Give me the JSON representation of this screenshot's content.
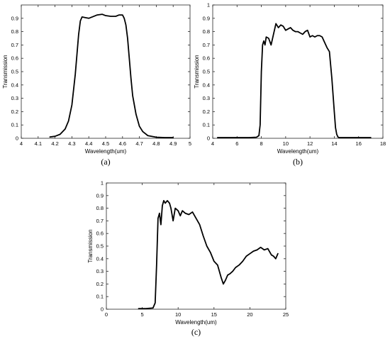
{
  "chart_data": [
    {
      "id": "a",
      "type": "line",
      "caption": "(a)",
      "title": "",
      "xlabel": "Wavelength(um)",
      "ylabel": "Transmission",
      "xlim": [
        4,
        5
      ],
      "ylim": [
        0,
        1
      ],
      "xticks": [
        4,
        4.1,
        4.2,
        4.3,
        4.4,
        4.5,
        4.6,
        4.7,
        4.8,
        4.9,
        5
      ],
      "xtick_labels": [
        "4",
        "4.1",
        "4.2",
        "4.3",
        "4.4",
        "4.5",
        "4.6",
        "4.7",
        "4.8",
        "4.9",
        "5"
      ],
      "yticks": [
        0,
        0.1,
        0.2,
        0.3,
        0.4,
        0.5,
        0.6,
        0.7,
        0.8,
        0.9
      ],
      "ytick_labels": [
        "0",
        "0.1",
        "0.2",
        "0.3",
        "0.4",
        "0.5",
        "0.6",
        "0.7",
        "0.8",
        "0.9"
      ],
      "grid": false,
      "series": [
        {
          "color": "#000000",
          "x": [
            4.17,
            4.2,
            4.23,
            4.26,
            4.28,
            4.3,
            4.32,
            4.33,
            4.34,
            4.35,
            4.36,
            4.38,
            4.4,
            4.42,
            4.45,
            4.48,
            4.5,
            4.53,
            4.56,
            4.58,
            4.6,
            4.61,
            4.62,
            4.63,
            4.64,
            4.65,
            4.66,
            4.68,
            4.7,
            4.72,
            4.75,
            4.8,
            4.85,
            4.9
          ],
          "y": [
            0.01,
            0.015,
            0.03,
            0.07,
            0.13,
            0.25,
            0.48,
            0.63,
            0.78,
            0.88,
            0.91,
            0.905,
            0.9,
            0.91,
            0.925,
            0.93,
            0.92,
            0.915,
            0.915,
            0.925,
            0.925,
            0.9,
            0.85,
            0.75,
            0.6,
            0.45,
            0.32,
            0.18,
            0.09,
            0.05,
            0.02,
            0.008,
            0.005,
            0.005
          ]
        }
      ]
    },
    {
      "id": "b",
      "type": "line",
      "caption": "(b)",
      "title": "",
      "xlabel": "Wavelength(um)",
      "ylabel": "Transmission",
      "xlim": [
        4,
        18
      ],
      "ylim": [
        0,
        1
      ],
      "xticks": [
        4,
        6,
        8,
        10,
        12,
        14,
        16,
        18
      ],
      "xtick_labels": [
        "4",
        "6",
        "8",
        "10",
        "12",
        "14",
        "16",
        "18"
      ],
      "yticks": [
        0,
        0.1,
        0.2,
        0.3,
        0.4,
        0.5,
        0.6,
        0.7,
        0.8,
        0.9,
        1
      ],
      "ytick_labels": [
        "0",
        "0.1",
        "0.2",
        "0.3",
        "0.4",
        "0.5",
        "0.6",
        "0.7",
        "0.8",
        "0.9",
        "1"
      ],
      "grid": false,
      "series": [
        {
          "color": "#000000",
          "x": [
            4.4,
            5,
            6,
            7,
            7.6,
            7.8,
            7.9,
            8.0,
            8.1,
            8.2,
            8.3,
            8.4,
            8.6,
            8.8,
            9.0,
            9.2,
            9.4,
            9.6,
            9.8,
            10.0,
            10.2,
            10.4,
            10.6,
            10.8,
            11.0,
            11.2,
            11.4,
            11.6,
            11.8,
            12.0,
            12.2,
            12.4,
            12.6,
            12.8,
            13.0,
            13.2,
            13.4,
            13.6,
            13.8,
            14.0,
            14.1,
            14.2,
            14.3,
            14.4,
            14.6,
            15,
            16,
            17
          ],
          "y": [
            0.005,
            0.005,
            0.005,
            0.005,
            0.008,
            0.02,
            0.1,
            0.5,
            0.7,
            0.73,
            0.7,
            0.76,
            0.75,
            0.7,
            0.78,
            0.86,
            0.83,
            0.85,
            0.84,
            0.81,
            0.82,
            0.83,
            0.81,
            0.8,
            0.8,
            0.79,
            0.78,
            0.8,
            0.81,
            0.76,
            0.77,
            0.76,
            0.77,
            0.77,
            0.76,
            0.72,
            0.68,
            0.65,
            0.45,
            0.2,
            0.08,
            0.03,
            0.01,
            0.005,
            0.005,
            0.005,
            0.005,
            0.005
          ]
        }
      ]
    },
    {
      "id": "c",
      "type": "line",
      "caption": "(c)",
      "title": "",
      "xlabel": "Wavelength(um)",
      "ylabel": "Transmission",
      "xlim": [
        0,
        25
      ],
      "ylim": [
        0,
        1
      ],
      "xticks": [
        0,
        5,
        10,
        15,
        20,
        25
      ],
      "xtick_labels": [
        "0",
        "5",
        "10",
        "15",
        "20",
        "25"
      ],
      "yticks": [
        0,
        0.1,
        0.2,
        0.3,
        0.4,
        0.5,
        0.6,
        0.7,
        0.8,
        0.9,
        1
      ],
      "ytick_labels": [
        "0",
        "0.1",
        "0.2",
        "0.3",
        "0.4",
        "0.5",
        "0.6",
        "0.7",
        "0.8",
        "0.9",
        "1"
      ],
      "grid": false,
      "series": [
        {
          "color": "#000000",
          "x": [
            4.5,
            5.5,
            6.5,
            6.8,
            7.0,
            7.2,
            7.4,
            7.6,
            7.8,
            8.0,
            8.2,
            8.5,
            8.8,
            9.0,
            9.3,
            9.6,
            10.0,
            10.3,
            10.6,
            11.0,
            11.5,
            12.0,
            12.5,
            13.0,
            13.5,
            14.0,
            14.5,
            15.0,
            15.5,
            16.0,
            16.3,
            16.6,
            16.9,
            17.2,
            17.6,
            18.0,
            18.5,
            19.0,
            19.5,
            20.0,
            20.5,
            21.0,
            21.5,
            22.0,
            22.5,
            23.0,
            23.3,
            23.6,
            23.9
          ],
          "y": [
            0.005,
            0.005,
            0.01,
            0.05,
            0.35,
            0.72,
            0.76,
            0.67,
            0.82,
            0.86,
            0.84,
            0.86,
            0.84,
            0.8,
            0.7,
            0.8,
            0.78,
            0.74,
            0.78,
            0.76,
            0.75,
            0.77,
            0.72,
            0.67,
            0.58,
            0.5,
            0.45,
            0.38,
            0.35,
            0.25,
            0.2,
            0.23,
            0.27,
            0.28,
            0.3,
            0.33,
            0.35,
            0.38,
            0.42,
            0.44,
            0.46,
            0.47,
            0.49,
            0.47,
            0.48,
            0.43,
            0.42,
            0.4,
            0.44
          ]
        }
      ]
    }
  ]
}
